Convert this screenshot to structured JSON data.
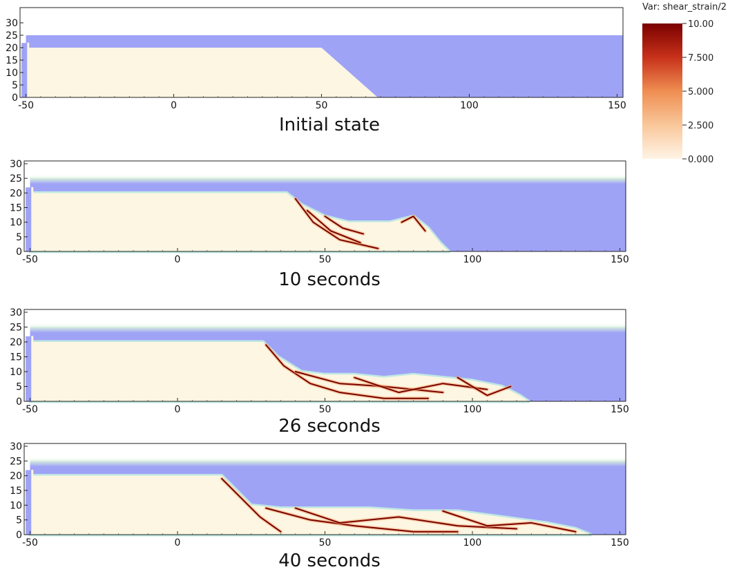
{
  "colors": {
    "water": "#9fa3f6",
    "soil": "#fcf6e2",
    "air": "#ffffff",
    "strain_low": "#fff3e4",
    "strain_mid": "#f3a46b",
    "strain_high": "#7a0000",
    "interface_glow": "#bfe8e2"
  },
  "chart_data": [
    {
      "type": "heatmap",
      "name": "Initial state",
      "caption": "Initial state",
      "xlim": [
        -52,
        152
      ],
      "ylim": [
        0,
        30
      ],
      "xticks": [
        "-50",
        "0",
        "50",
        "100",
        "150"
      ],
      "yticks": [
        "0",
        "5",
        "10",
        "15",
        "20",
        "25",
        "30"
      ],
      "water_level": 25,
      "soil_profile": [
        [
          -50,
          20
        ],
        [
          50,
          20
        ],
        [
          69,
          0
        ]
      ]
    },
    {
      "type": "heatmap",
      "name": "10 seconds",
      "caption": "10 seconds",
      "xlim": [
        -52,
        152
      ],
      "ylim": [
        0,
        30
      ],
      "xticks": [
        "-50",
        "0",
        "50",
        "100",
        "150"
      ],
      "yticks": [
        "0",
        "5",
        "10",
        "15",
        "20",
        "25",
        "30"
      ],
      "water_level": 25,
      "soil_profile": [
        [
          -50,
          20
        ],
        [
          37,
          20
        ],
        [
          42,
          16
        ],
        [
          50,
          12
        ],
        [
          58,
          10
        ],
        [
          66,
          10
        ],
        [
          72,
          10
        ],
        [
          80,
          12
        ],
        [
          85,
          8
        ],
        [
          89,
          3
        ],
        [
          92,
          0
        ]
      ],
      "shear_bands": [
        [
          [
            40,
            18
          ],
          [
            46,
            10
          ],
          [
            55,
            4
          ],
          [
            68,
            1
          ]
        ],
        [
          [
            44,
            14
          ],
          [
            52,
            7
          ],
          [
            62,
            3
          ]
        ],
        [
          [
            50,
            12
          ],
          [
            56,
            8
          ],
          [
            63,
            6
          ]
        ],
        [
          [
            76,
            10
          ],
          [
            80,
            12
          ],
          [
            84,
            7
          ]
        ]
      ]
    },
    {
      "type": "heatmap",
      "name": "26 seconds",
      "caption": "26 seconds",
      "xlim": [
        -52,
        152
      ],
      "ylim": [
        0,
        30
      ],
      "xticks": [
        "-50",
        "0",
        "50",
        "100",
        "150"
      ],
      "yticks": [
        "0",
        "5",
        "10",
        "15",
        "20",
        "25",
        "30"
      ],
      "water_level": 25,
      "soil_profile": [
        [
          -50,
          20
        ],
        [
          29,
          20
        ],
        [
          34,
          15
        ],
        [
          42,
          10
        ],
        [
          50,
          9
        ],
        [
          60,
          9
        ],
        [
          70,
          8
        ],
        [
          80,
          9
        ],
        [
          90,
          8
        ],
        [
          100,
          7
        ],
        [
          110,
          5
        ],
        [
          116,
          2
        ],
        [
          119,
          0
        ]
      ],
      "shear_bands": [
        [
          [
            30,
            19
          ],
          [
            36,
            12
          ],
          [
            45,
            6
          ],
          [
            55,
            3
          ],
          [
            70,
            1
          ],
          [
            85,
            1
          ]
        ],
        [
          [
            40,
            10
          ],
          [
            55,
            6
          ],
          [
            70,
            5
          ],
          [
            90,
            3
          ]
        ],
        [
          [
            60,
            8
          ],
          [
            75,
            3
          ],
          [
            90,
            6
          ],
          [
            105,
            4
          ]
        ],
        [
          [
            95,
            8
          ],
          [
            105,
            2
          ],
          [
            113,
            5
          ]
        ]
      ]
    },
    {
      "type": "heatmap",
      "name": "40 seconds",
      "caption": "40 seconds",
      "xlim": [
        -52,
        152
      ],
      "ylim": [
        0,
        30
      ],
      "xticks": [
        "-50",
        "0",
        "50",
        "100",
        "150"
      ],
      "yticks": [
        "0",
        "5",
        "10",
        "15",
        "20",
        "25",
        "30"
      ],
      "water_level": 25,
      "soil_profile": [
        [
          -50,
          20
        ],
        [
          15,
          20
        ],
        [
          20,
          15
        ],
        [
          25,
          10
        ],
        [
          35,
          9
        ],
        [
          50,
          9
        ],
        [
          65,
          9
        ],
        [
          80,
          8
        ],
        [
          95,
          8
        ],
        [
          110,
          6
        ],
        [
          125,
          4
        ],
        [
          135,
          2
        ],
        [
          140,
          0
        ]
      ],
      "shear_bands": [
        [
          [
            15,
            19
          ],
          [
            22,
            12
          ],
          [
            28,
            6
          ],
          [
            35,
            1
          ]
        ],
        [
          [
            30,
            9
          ],
          [
            45,
            5
          ],
          [
            60,
            3
          ],
          [
            80,
            1
          ],
          [
            95,
            1
          ]
        ],
        [
          [
            40,
            9
          ],
          [
            55,
            4
          ],
          [
            75,
            6
          ],
          [
            95,
            3
          ],
          [
            115,
            2
          ]
        ],
        [
          [
            90,
            8
          ],
          [
            105,
            3
          ],
          [
            120,
            4
          ],
          [
            135,
            1
          ]
        ]
      ]
    }
  ],
  "colorbar": {
    "title": "Var: shear_strain/2",
    "range": [
      0,
      10
    ],
    "labels": [
      "10.00",
      "7.500",
      "5.000",
      "2.500",
      "0.000"
    ]
  }
}
